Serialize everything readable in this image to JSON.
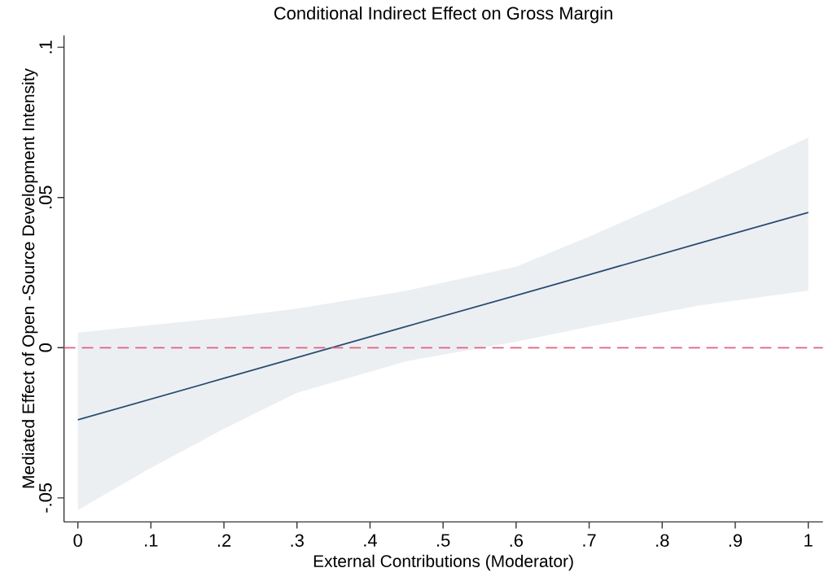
{
  "chart_data": {
    "type": "line",
    "title": "Conditional Indirect Effect on Gross Margin",
    "xlabel": "External Contributions (Moderator)",
    "ylabel": "Mediated Effect of Open -Source Development Intensity",
    "series": [
      {
        "color": "#2b4c72",
        "x": [
          0,
          0.1,
          0.2,
          0.3,
          0.45,
          0.6,
          0.7,
          0.85,
          1
        ],
        "values": [
          -0.024,
          -0.0171,
          -0.0102,
          -0.0033,
          0.0071,
          0.0174,
          0.0243,
          0.0347,
          0.045
        ],
        "lower": [
          -0.054,
          -0.04,
          -0.027,
          -0.015,
          -0.0045,
          0.002,
          0.007,
          0.014,
          0.019
        ],
        "upper": [
          0.005,
          0.0075,
          0.01,
          0.013,
          0.019,
          0.027,
          0.037,
          0.053,
          0.07
        ]
      }
    ],
    "ref_lines": [
      {
        "axis": "y",
        "value": 0,
        "color": "#e0607e",
        "line_style": "dashed"
      }
    ],
    "xlim": [
      -0.019,
      1.02
    ],
    "ylim": [
      -0.058,
      0.104
    ],
    "xticks": [
      0,
      {
        "value": 0.1,
        "label": ".1"
      },
      {
        "value": 0.2,
        "label": ".2"
      },
      {
        "value": 0.3,
        "label": ".3"
      },
      {
        "value": 0.4,
        "label": ".4"
      },
      {
        "value": 0.5,
        "label": ".5"
      },
      {
        "value": 0.6,
        "label": ".6"
      },
      {
        "value": 0.7,
        "label": ".7"
      },
      {
        "value": 0.8,
        "label": ".8"
      },
      {
        "value": 0.9,
        "label": ".9"
      },
      1
    ],
    "yticks": [
      {
        "value": -0.05,
        "label": "-.05"
      },
      0,
      {
        "value": 0.05,
        "label": ".05"
      },
      {
        "value": 0.1,
        "label": ".1"
      }
    ],
    "grid": false,
    "line_style": "solid",
    "marker": "none"
  }
}
